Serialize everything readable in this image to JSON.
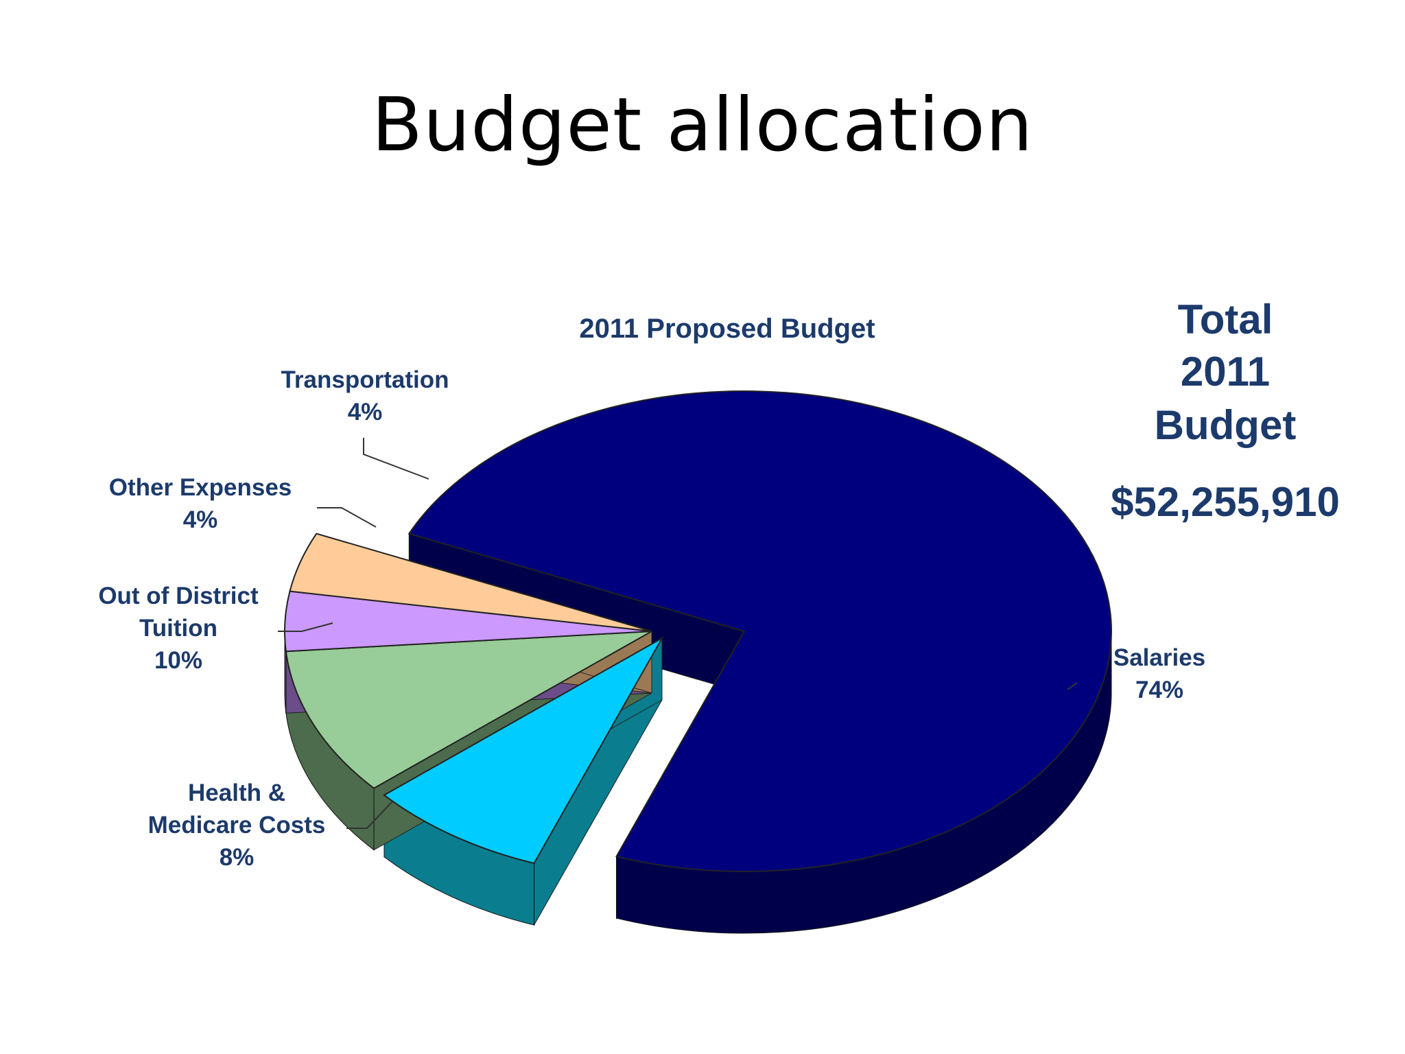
{
  "slide": {
    "title": "Budget allocation"
  },
  "chart_data": {
    "type": "pie",
    "title": "2011 Proposed Budget",
    "slices": [
      {
        "name": "Salaries",
        "label_lines": [
          "Salaries",
          "74%"
        ],
        "value": 74,
        "color": "#00007e",
        "side_color": "#00004a"
      },
      {
        "name": "Health & Medicare Costs",
        "label_lines": [
          "Health &",
          "Medicare Costs",
          "8%"
        ],
        "value": 8,
        "color": "#00ccff",
        "side_color": "#0a7d8f"
      },
      {
        "name": "Out of District Tuition",
        "label_lines": [
          "Out of District",
          "Tuition",
          "10%"
        ],
        "value": 10,
        "color": "#98cc98",
        "side_color": "#4d6b4d"
      },
      {
        "name": "Other Expenses",
        "label_lines": [
          "Other Expenses",
          "4%"
        ],
        "value": 4,
        "color": "#cc99ff",
        "side_color": "#6b4d8a"
      },
      {
        "name": "Transportation",
        "label_lines": [
          "Transportation",
          "4%"
        ],
        "value": 4,
        "color": "#ffcc99",
        "side_color": "#9a7a55"
      }
    ],
    "total_box": {
      "lines": [
        "Total",
        "2011",
        "Budget"
      ],
      "amount": "$52,255,910"
    },
    "legend": "none",
    "grid": false
  }
}
